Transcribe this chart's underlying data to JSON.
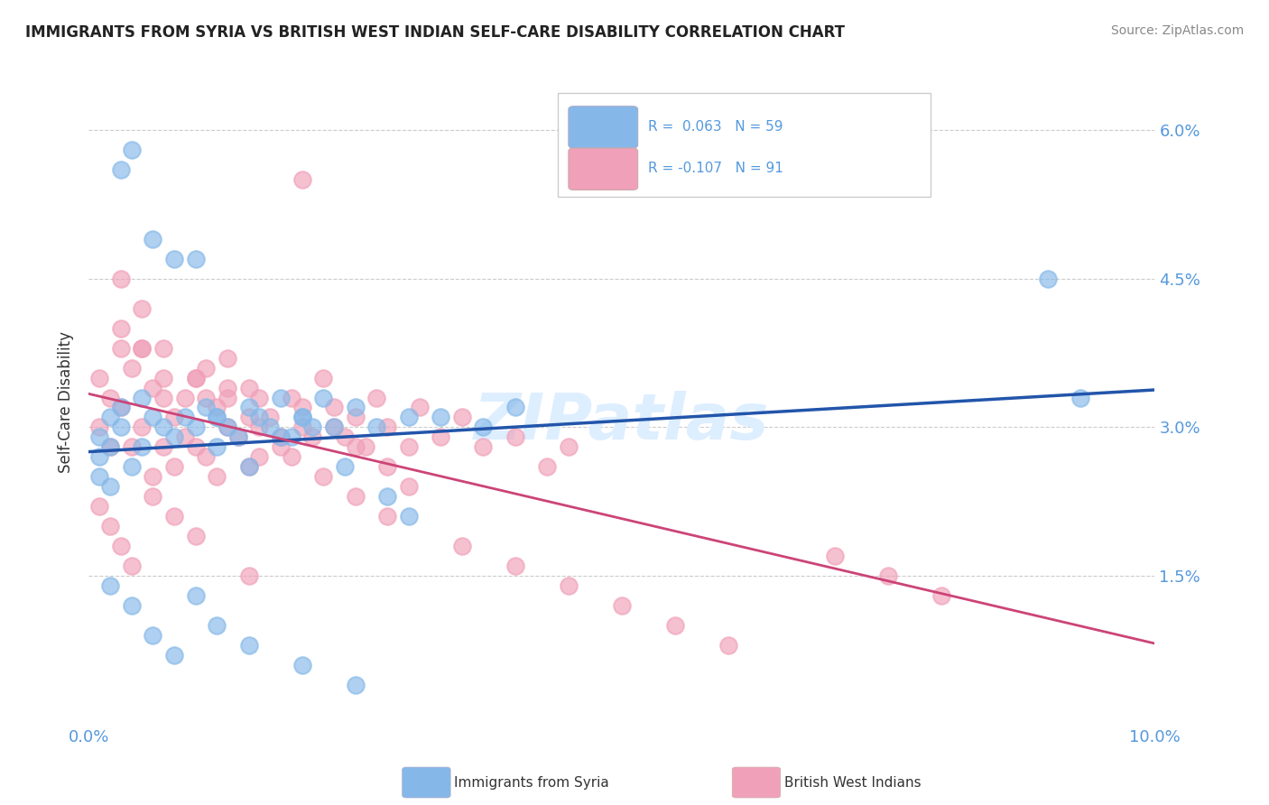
{
  "title": "IMMIGRANTS FROM SYRIA VS BRITISH WEST INDIAN SELF-CARE DISABILITY CORRELATION CHART",
  "source": "Source: ZipAtlas.com",
  "ylabel": "Self-Care Disability",
  "xlim": [
    0.0,
    0.1
  ],
  "ylim": [
    0.0,
    0.065
  ],
  "xtick_vals": [
    0.0,
    0.02,
    0.04,
    0.06,
    0.08,
    0.1
  ],
  "xticklabels": [
    "0.0%",
    "",
    "",
    "",
    "",
    "10.0%"
  ],
  "ytick_vals": [
    0.0,
    0.015,
    0.03,
    0.045,
    0.06
  ],
  "yticklabels": [
    "",
    "1.5%",
    "3.0%",
    "4.5%",
    "6.0%"
  ],
  "color_syria": "#85b8e8",
  "color_bwi": "#f0a0b8",
  "line_color_syria": "#2255aa",
  "line_color_bwi": "#cc4477",
  "background_color": "#ffffff",
  "watermark": "ZIPatlas",
  "watermark_color": "#ddeeff",
  "tick_color": "#5599dd",
  "title_color": "#222222",
  "ylabel_color": "#333333",
  "source_color": "#888888",
  "legend_r1": "R =  0.063",
  "legend_n1": "N = 59",
  "legend_r2": "R = -0.107",
  "legend_n2": "N = 91",
  "legend_label1": "Immigrants from Syria",
  "legend_label2": "British West Indians",
  "syria_x": [
    0.001,
    0.001,
    0.002,
    0.002,
    0.003,
    0.003,
    0.004,
    0.005,
    0.005,
    0.006,
    0.007,
    0.008,
    0.009,
    0.01,
    0.011,
    0.012,
    0.012,
    0.013,
    0.014,
    0.015,
    0.016,
    0.017,
    0.018,
    0.019,
    0.02,
    0.021,
    0.022,
    0.023,
    0.025,
    0.027,
    0.03,
    0.033,
    0.037,
    0.04,
    0.003,
    0.004,
    0.006,
    0.008,
    0.01,
    0.012,
    0.015,
    0.018,
    0.02,
    0.024,
    0.028,
    0.03,
    0.002,
    0.004,
    0.006,
    0.008,
    0.01,
    0.012,
    0.015,
    0.02,
    0.025,
    0.09,
    0.093,
    0.001,
    0.002
  ],
  "syria_y": [
    0.027,
    0.029,
    0.031,
    0.028,
    0.03,
    0.032,
    0.026,
    0.028,
    0.033,
    0.031,
    0.03,
    0.029,
    0.031,
    0.03,
    0.032,
    0.028,
    0.031,
    0.03,
    0.029,
    0.032,
    0.031,
    0.03,
    0.033,
    0.029,
    0.031,
    0.03,
    0.033,
    0.03,
    0.032,
    0.03,
    0.031,
    0.031,
    0.03,
    0.032,
    0.056,
    0.058,
    0.049,
    0.047,
    0.047,
    0.031,
    0.026,
    0.029,
    0.031,
    0.026,
    0.023,
    0.021,
    0.014,
    0.012,
    0.009,
    0.007,
    0.013,
    0.01,
    0.008,
    0.006,
    0.004,
    0.045,
    0.033,
    0.025,
    0.024
  ],
  "bwi_x": [
    0.001,
    0.001,
    0.002,
    0.002,
    0.003,
    0.003,
    0.004,
    0.004,
    0.005,
    0.005,
    0.006,
    0.006,
    0.007,
    0.007,
    0.008,
    0.008,
    0.009,
    0.01,
    0.01,
    0.011,
    0.011,
    0.012,
    0.012,
    0.013,
    0.013,
    0.014,
    0.015,
    0.015,
    0.016,
    0.016,
    0.017,
    0.018,
    0.019,
    0.02,
    0.021,
    0.022,
    0.023,
    0.024,
    0.025,
    0.026,
    0.027,
    0.028,
    0.03,
    0.031,
    0.033,
    0.035,
    0.037,
    0.04,
    0.043,
    0.045,
    0.003,
    0.005,
    0.007,
    0.009,
    0.011,
    0.013,
    0.015,
    0.018,
    0.02,
    0.023,
    0.025,
    0.028,
    0.03,
    0.003,
    0.005,
    0.007,
    0.01,
    0.013,
    0.016,
    0.019,
    0.022,
    0.025,
    0.028,
    0.035,
    0.04,
    0.045,
    0.05,
    0.055,
    0.06,
    0.07,
    0.075,
    0.08,
    0.001,
    0.002,
    0.003,
    0.004,
    0.006,
    0.008,
    0.01,
    0.015,
    0.02
  ],
  "bwi_y": [
    0.035,
    0.03,
    0.033,
    0.028,
    0.038,
    0.032,
    0.036,
    0.028,
    0.03,
    0.038,
    0.034,
    0.025,
    0.033,
    0.028,
    0.031,
    0.026,
    0.029,
    0.035,
    0.028,
    0.033,
    0.027,
    0.032,
    0.025,
    0.03,
    0.037,
    0.029,
    0.034,
    0.026,
    0.033,
    0.027,
    0.031,
    0.028,
    0.033,
    0.03,
    0.029,
    0.035,
    0.032,
    0.029,
    0.031,
    0.028,
    0.033,
    0.03,
    0.028,
    0.032,
    0.029,
    0.031,
    0.028,
    0.029,
    0.026,
    0.028,
    0.04,
    0.038,
    0.035,
    0.033,
    0.036,
    0.034,
    0.031,
    0.029,
    0.032,
    0.03,
    0.028,
    0.026,
    0.024,
    0.045,
    0.042,
    0.038,
    0.035,
    0.033,
    0.03,
    0.027,
    0.025,
    0.023,
    0.021,
    0.018,
    0.016,
    0.014,
    0.012,
    0.01,
    0.008,
    0.017,
    0.015,
    0.013,
    0.022,
    0.02,
    0.018,
    0.016,
    0.023,
    0.021,
    0.019,
    0.015,
    0.055
  ]
}
